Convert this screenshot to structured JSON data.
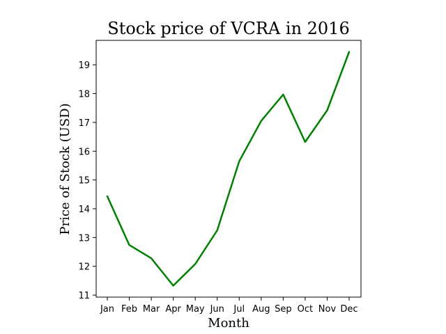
{
  "chart_data": {
    "type": "line",
    "title": "Stock price of VCRA in 2016",
    "xlabel": "Month",
    "ylabel": "Price of Stock (USD)",
    "categories": [
      "Jan",
      "Feb",
      "Mar",
      "Apr",
      "May",
      "Jun",
      "Jul",
      "Aug",
      "Sep",
      "Oct",
      "Nov",
      "Dec"
    ],
    "values": [
      14.43,
      12.74,
      12.28,
      11.33,
      12.08,
      13.25,
      15.65,
      17.05,
      17.97,
      16.32,
      17.42,
      19.45
    ],
    "ylim": [
      10.93,
      19.85
    ],
    "yticks": [
      11,
      12,
      13,
      14,
      15,
      16,
      17,
      18,
      19
    ],
    "line_color": "#008000",
    "grid": false
  }
}
